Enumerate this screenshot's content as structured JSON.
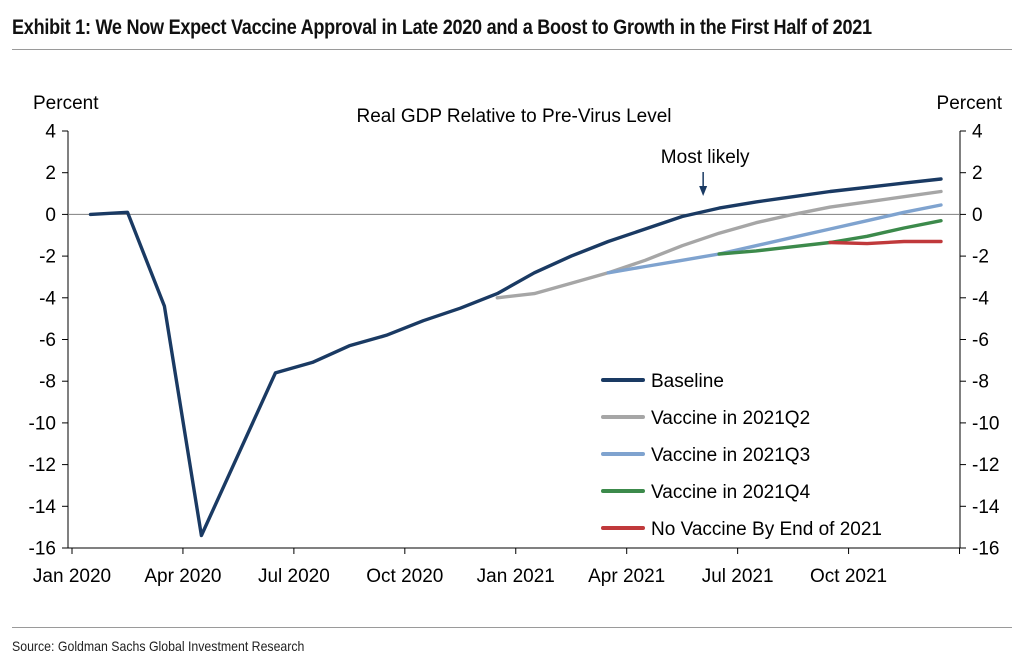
{
  "header": {
    "title": "Exhibit 1: We Now Expect Vaccine Approval in Late 2020 and a Boost to Growth in the First Half of 2021"
  },
  "footer": {
    "source": "Source: Goldman Sachs Global Investment Research"
  },
  "chart_data": {
    "type": "line",
    "title": "Real GDP Relative to Pre-Virus Level",
    "ylabel_left": "Percent",
    "ylabel_right": "Percent",
    "xlabel": "",
    "ylim": [
      -16,
      4
    ],
    "y_ticks": [
      "4",
      "2",
      "0",
      "-2",
      "-4",
      "-6",
      "-8",
      "-10",
      "-12",
      "-14",
      "-16"
    ],
    "x_ticks": [
      "Jan 2020",
      "Apr 2020",
      "Jul 2020",
      "Oct 2020",
      "Jan 2021",
      "Apr 2021",
      "Jul 2021",
      "Oct 2021"
    ],
    "zero_line": true,
    "grid": false,
    "legend_position": "bottom-right",
    "annotation": {
      "text": "Most likely",
      "points_to": "2021-06",
      "value": 0.0
    },
    "series": [
      {
        "name": "Baseline",
        "color": "#1a3a63",
        "x": [
          "2020-01",
          "2020-02",
          "2020-03",
          "2020-04",
          "2020-05",
          "2020-06",
          "2020-07",
          "2020-08",
          "2020-09",
          "2020-10",
          "2020-11",
          "2020-12",
          "2021-01",
          "2021-02",
          "2021-03",
          "2021-04",
          "2021-05",
          "2021-06",
          "2021-07",
          "2021-08",
          "2021-09",
          "2021-10",
          "2021-11",
          "2021-12"
        ],
        "y": [
          0.0,
          0.1,
          -4.4,
          -15.4,
          -11.5,
          -7.6,
          -7.1,
          -6.3,
          -5.8,
          -5.1,
          -4.5,
          -3.8,
          -2.8,
          -2.0,
          -1.3,
          -0.7,
          -0.1,
          0.3,
          0.6,
          0.85,
          1.1,
          1.3,
          1.5,
          1.7
        ]
      },
      {
        "name": "Vaccine in 2021Q2",
        "color": "#a6a6a6",
        "x": [
          "2020-12",
          "2021-01",
          "2021-02",
          "2021-03",
          "2021-04",
          "2021-05",
          "2021-06",
          "2021-07",
          "2021-08",
          "2021-09",
          "2021-10",
          "2021-11",
          "2021-12"
        ],
        "y": [
          -4.0,
          -3.8,
          -3.3,
          -2.8,
          -2.2,
          -1.5,
          -0.9,
          -0.4,
          0.0,
          0.35,
          0.6,
          0.85,
          1.1
        ]
      },
      {
        "name": "Vaccine in 2021Q3",
        "color": "#7fa3cf",
        "x": [
          "2021-03",
          "2021-04",
          "2021-05",
          "2021-06",
          "2021-07",
          "2021-08",
          "2021-09",
          "2021-10",
          "2021-11",
          "2021-12"
        ],
        "y": [
          -2.8,
          -2.5,
          -2.2,
          -1.9,
          -1.5,
          -1.1,
          -0.7,
          -0.3,
          0.1,
          0.45
        ]
      },
      {
        "name": "Vaccine in 2021Q4",
        "color": "#3c8a4b",
        "x": [
          "2021-06",
          "2021-07",
          "2021-08",
          "2021-09",
          "2021-10",
          "2021-11",
          "2021-12"
        ],
        "y": [
          -1.9,
          -1.75,
          -1.55,
          -1.35,
          -1.05,
          -0.65,
          -0.3
        ]
      },
      {
        "name": "No Vaccine By End of 2021",
        "color": "#c0393b",
        "x": [
          "2021-09",
          "2021-10",
          "2021-11",
          "2021-12"
        ],
        "y": [
          -1.35,
          -1.4,
          -1.3,
          -1.3
        ]
      }
    ]
  }
}
